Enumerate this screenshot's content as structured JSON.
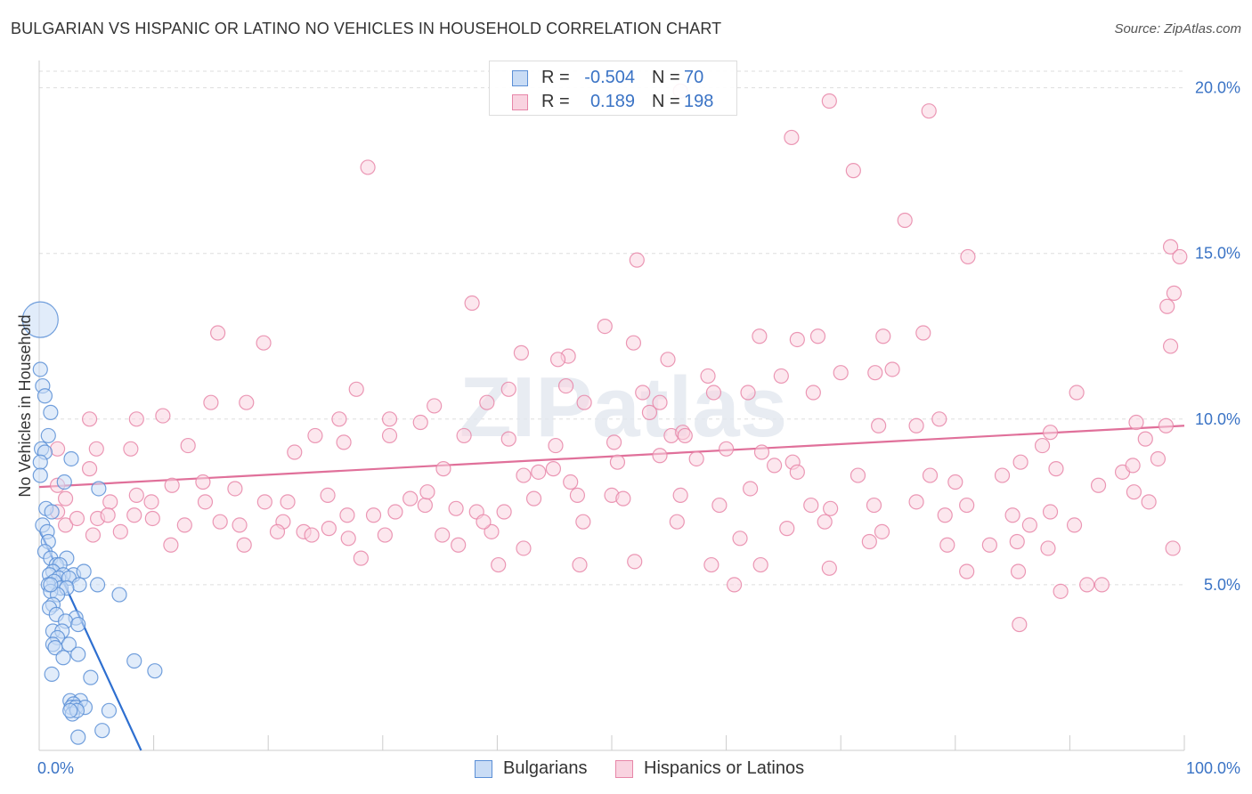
{
  "title": "BULGARIAN VS HISPANIC OR LATINO NO VEHICLES IN HOUSEHOLD CORRELATION CHART",
  "source": "Source: ZipAtlas.com",
  "watermark": "ZIPatlas",
  "legend": {
    "rows": [
      {
        "r_label": "R =",
        "r_value": "-0.504",
        "n_label": "N =",
        "n_value": "70",
        "color": "#5b8fd6",
        "fill": "#c9dcf5"
      },
      {
        "r_label": "R =",
        "r_value": "0.189",
        "n_label": "N =",
        "n_value": "198",
        "color": "#e786a8",
        "fill": "#f9d3e0"
      }
    ]
  },
  "bottom_legend": [
    {
      "label": "Bulgarians",
      "color": "#5b8fd6",
      "fill": "#c9dcf5"
    },
    {
      "label": "Hispanics or Latinos",
      "color": "#e786a8",
      "fill": "#f9d3e0"
    }
  ],
  "chart_data": {
    "type": "scatter",
    "title": "BULGARIAN VS HISPANIC OR LATINO NO VEHICLES IN HOUSEHOLD CORRELATION CHART",
    "xlabel": "",
    "ylabel": "No Vehicles in Household",
    "xlim": [
      0,
      100
    ],
    "ylim": [
      0,
      20.5
    ],
    "x_tick_labels": [
      "0.0%",
      "100.0%"
    ],
    "y_ticks": [
      5,
      10,
      15,
      20
    ],
    "y_tick_labels": [
      "5.0%",
      "10.0%",
      "15.0%",
      "20.0%"
    ],
    "grid": "horizontal-dashed",
    "legend_position": "top-center",
    "series": [
      {
        "name": "Bulgarians",
        "color": "#5b8fd6",
        "fill": "#c9dcf5",
        "R": -0.504,
        "N": 70,
        "trend": {
          "x": [
            0.1,
            8.9
          ],
          "y": [
            6.6,
            0.0
          ]
        },
        "points": [
          [
            0.1,
            13.0
          ],
          [
            0.1,
            11.5
          ],
          [
            0.3,
            11.0
          ],
          [
            0.5,
            10.7
          ],
          [
            1.0,
            10.2
          ],
          [
            0.8,
            9.5
          ],
          [
            0.2,
            9.1
          ],
          [
            0.5,
            9.0
          ],
          [
            0.1,
            8.7
          ],
          [
            2.8,
            8.8
          ],
          [
            0.1,
            8.3
          ],
          [
            2.2,
            8.1
          ],
          [
            5.2,
            7.9
          ],
          [
            0.6,
            7.3
          ],
          [
            1.1,
            7.2
          ],
          [
            0.3,
            6.8
          ],
          [
            0.7,
            6.6
          ],
          [
            0.8,
            6.3
          ],
          [
            0.5,
            6.0
          ],
          [
            1.0,
            5.8
          ],
          [
            2.4,
            5.8
          ],
          [
            1.5,
            5.6
          ],
          [
            1.8,
            5.6
          ],
          [
            1.2,
            5.4
          ],
          [
            3.0,
            5.3
          ],
          [
            3.9,
            5.4
          ],
          [
            2.1,
            5.3
          ],
          [
            0.9,
            5.3
          ],
          [
            1.7,
            5.2
          ],
          [
            2.6,
            5.2
          ],
          [
            1.3,
            5.1
          ],
          [
            0.8,
            5.0
          ],
          [
            3.5,
            5.0
          ],
          [
            5.1,
            5.0
          ],
          [
            1.9,
            4.9
          ],
          [
            2.4,
            4.9
          ],
          [
            1.0,
            4.8
          ],
          [
            1.6,
            4.7
          ],
          [
            7.0,
            4.7
          ],
          [
            1.2,
            4.4
          ],
          [
            0.9,
            4.3
          ],
          [
            1.5,
            4.1
          ],
          [
            3.2,
            4.0
          ],
          [
            2.3,
            3.9
          ],
          [
            3.4,
            3.8
          ],
          [
            1.2,
            3.6
          ],
          [
            2.0,
            3.6
          ],
          [
            1.6,
            3.4
          ],
          [
            1.2,
            3.2
          ],
          [
            2.6,
            3.2
          ],
          [
            1.4,
            3.1
          ],
          [
            3.4,
            2.9
          ],
          [
            2.1,
            2.8
          ],
          [
            8.3,
            2.7
          ],
          [
            10.1,
            2.4
          ],
          [
            1.1,
            2.3
          ],
          [
            4.5,
            2.2
          ],
          [
            2.7,
            1.5
          ],
          [
            3.6,
            1.5
          ],
          [
            3.0,
            1.4
          ],
          [
            2.8,
            1.3
          ],
          [
            3.2,
            1.3
          ],
          [
            4.0,
            1.3
          ],
          [
            6.1,
            1.2
          ],
          [
            2.9,
            1.1
          ],
          [
            3.3,
            1.2
          ],
          [
            5.5,
            0.6
          ],
          [
            3.4,
            0.4
          ],
          [
            2.7,
            1.2
          ],
          [
            1.0,
            5.0
          ]
        ]
      },
      {
        "name": "Hispanics or Latinos",
        "color": "#e786a8",
        "fill": "#f9d3e0",
        "R": 0.189,
        "N": 198,
        "trend": {
          "x": [
            0,
            100
          ],
          "y": [
            7.95,
            9.8
          ]
        },
        "points": [
          [
            56.0,
            19.9
          ],
          [
            69.0,
            19.6
          ],
          [
            65.7,
            18.5
          ],
          [
            77.7,
            19.3
          ],
          [
            28.7,
            17.6
          ],
          [
            71.1,
            17.5
          ],
          [
            75.6,
            16.0
          ],
          [
            81.1,
            14.9
          ],
          [
            52.2,
            14.8
          ],
          [
            98.8,
            15.2
          ],
          [
            99.6,
            14.9
          ],
          [
            37.8,
            13.5
          ],
          [
            99.1,
            13.8
          ],
          [
            98.5,
            13.4
          ],
          [
            15.6,
            12.6
          ],
          [
            49.4,
            12.8
          ],
          [
            77.2,
            12.6
          ],
          [
            62.9,
            12.5
          ],
          [
            19.6,
            12.3
          ],
          [
            51.9,
            12.3
          ],
          [
            68.0,
            12.5
          ],
          [
            66.2,
            12.4
          ],
          [
            73.7,
            12.5
          ],
          [
            42.1,
            12.0
          ],
          [
            46.2,
            11.9
          ],
          [
            45.3,
            11.8
          ],
          [
            54.9,
            11.8
          ],
          [
            70.0,
            11.4
          ],
          [
            73.0,
            11.4
          ],
          [
            74.5,
            11.5
          ],
          [
            98.8,
            12.2
          ],
          [
            33.3,
            9.9
          ],
          [
            37.1,
            9.5
          ],
          [
            34.5,
            10.4
          ],
          [
            41.0,
            10.9
          ],
          [
            46.0,
            11.0
          ],
          [
            47.6,
            10.5
          ],
          [
            39.1,
            10.5
          ],
          [
            58.4,
            11.3
          ],
          [
            61.9,
            10.8
          ],
          [
            64.8,
            11.3
          ],
          [
            67.6,
            10.8
          ],
          [
            58.9,
            10.8
          ],
          [
            52.7,
            10.8
          ],
          [
            90.6,
            10.8
          ],
          [
            27.7,
            10.9
          ],
          [
            18.1,
            10.5
          ],
          [
            15.0,
            10.5
          ],
          [
            10.8,
            10.1
          ],
          [
            4.4,
            10.0
          ],
          [
            8.5,
            10.0
          ],
          [
            30.6,
            10.0
          ],
          [
            26.2,
            10.0
          ],
          [
            53.3,
            10.2
          ],
          [
            54.2,
            10.5
          ],
          [
            55.2,
            9.5
          ],
          [
            56.2,
            9.6
          ],
          [
            73.3,
            9.8
          ],
          [
            76.6,
            9.8
          ],
          [
            78.6,
            10.0
          ],
          [
            88.3,
            9.6
          ],
          [
            95.8,
            9.9
          ],
          [
            98.4,
            9.8
          ],
          [
            1.6,
            9.1
          ],
          [
            5.0,
            9.1
          ],
          [
            8.0,
            9.1
          ],
          [
            13.0,
            9.2
          ],
          [
            22.3,
            9.0
          ],
          [
            24.1,
            9.5
          ],
          [
            26.6,
            9.3
          ],
          [
            30.6,
            9.5
          ],
          [
            41.0,
            9.4
          ],
          [
            45.1,
            9.2
          ],
          [
            50.2,
            9.3
          ],
          [
            56.4,
            9.5
          ],
          [
            60.0,
            9.1
          ],
          [
            63.1,
            9.0
          ],
          [
            65.8,
            8.7
          ],
          [
            35.3,
            8.5
          ],
          [
            42.3,
            8.3
          ],
          [
            43.6,
            8.4
          ],
          [
            44.9,
            8.5
          ],
          [
            46.4,
            8.1
          ],
          [
            50.5,
            8.7
          ],
          [
            54.2,
            8.9
          ],
          [
            57.4,
            8.8
          ],
          [
            64.2,
            8.6
          ],
          [
            66.2,
            8.4
          ],
          [
            71.5,
            8.3
          ],
          [
            77.8,
            8.3
          ],
          [
            80.0,
            8.1
          ],
          [
            84.1,
            8.3
          ],
          [
            85.7,
            8.7
          ],
          [
            87.6,
            9.2
          ],
          [
            88.8,
            8.5
          ],
          [
            94.6,
            8.4
          ],
          [
            95.5,
            8.6
          ],
          [
            96.6,
            9.4
          ],
          [
            97.7,
            8.8
          ],
          [
            1.6,
            8.0
          ],
          [
            2.3,
            7.6
          ],
          [
            4.4,
            8.5
          ],
          [
            6.2,
            7.5
          ],
          [
            8.5,
            7.7
          ],
          [
            9.8,
            7.5
          ],
          [
            11.6,
            8.0
          ],
          [
            14.3,
            8.1
          ],
          [
            17.1,
            7.9
          ],
          [
            19.7,
            7.5
          ],
          [
            21.7,
            7.5
          ],
          [
            25.2,
            7.7
          ],
          [
            26.9,
            7.1
          ],
          [
            29.2,
            7.1
          ],
          [
            31.1,
            7.2
          ],
          [
            32.4,
            7.6
          ],
          [
            33.7,
            7.4
          ],
          [
            36.4,
            7.3
          ],
          [
            38.2,
            7.2
          ],
          [
            40.6,
            7.2
          ],
          [
            43.2,
            7.6
          ],
          [
            47.0,
            7.7
          ],
          [
            50.0,
            7.7
          ],
          [
            51.0,
            7.6
          ],
          [
            56.0,
            7.7
          ],
          [
            59.4,
            7.4
          ],
          [
            62.1,
            7.9
          ],
          [
            67.4,
            7.4
          ],
          [
            69.1,
            7.3
          ],
          [
            72.9,
            7.4
          ],
          [
            76.6,
            7.5
          ],
          [
            79.1,
            7.1
          ],
          [
            81.0,
            7.4
          ],
          [
            85.0,
            7.1
          ],
          [
            88.3,
            7.2
          ],
          [
            92.5,
            8.0
          ],
          [
            95.6,
            7.8
          ],
          [
            96.9,
            7.5
          ],
          [
            1.6,
            7.2
          ],
          [
            2.3,
            6.8
          ],
          [
            3.3,
            7.0
          ],
          [
            5.1,
            7.0
          ],
          [
            6.0,
            7.1
          ],
          [
            8.3,
            7.1
          ],
          [
            9.9,
            7.0
          ],
          [
            12.7,
            6.8
          ],
          [
            15.8,
            6.9
          ],
          [
            17.5,
            6.8
          ],
          [
            21.3,
            6.9
          ],
          [
            23.1,
            6.6
          ],
          [
            23.8,
            6.5
          ],
          [
            25.3,
            6.7
          ],
          [
            27.0,
            6.4
          ],
          [
            30.2,
            6.5
          ],
          [
            35.2,
            6.5
          ],
          [
            39.5,
            6.6
          ],
          [
            42.3,
            6.1
          ],
          [
            47.5,
            6.9
          ],
          [
            55.7,
            6.9
          ],
          [
            61.2,
            6.4
          ],
          [
            65.3,
            6.7
          ],
          [
            68.6,
            6.9
          ],
          [
            73.6,
            6.6
          ],
          [
            79.3,
            6.2
          ],
          [
            83.0,
            6.2
          ],
          [
            85.4,
            6.3
          ],
          [
            86.5,
            6.8
          ],
          [
            90.4,
            6.8
          ],
          [
            99.0,
            6.1
          ],
          [
            4.7,
            6.5
          ],
          [
            7.1,
            6.6
          ],
          [
            11.5,
            6.2
          ],
          [
            17.9,
            6.2
          ],
          [
            20.8,
            6.6
          ],
          [
            28.1,
            5.8
          ],
          [
            36.6,
            6.2
          ],
          [
            40.1,
            5.6
          ],
          [
            47.2,
            5.6
          ],
          [
            58.7,
            5.6
          ],
          [
            63.0,
            5.6
          ],
          [
            69.0,
            5.5
          ],
          [
            81.0,
            5.4
          ],
          [
            85.5,
            5.4
          ],
          [
            88.1,
            6.1
          ],
          [
            89.2,
            4.8
          ],
          [
            91.5,
            5.0
          ],
          [
            92.8,
            5.0
          ],
          [
            85.6,
            3.8
          ],
          [
            60.7,
            5.0
          ],
          [
            14.5,
            7.5
          ],
          [
            38.8,
            6.9
          ],
          [
            72.5,
            6.3
          ],
          [
            52.0,
            5.7
          ],
          [
            33.9,
            7.8
          ]
        ]
      }
    ]
  }
}
